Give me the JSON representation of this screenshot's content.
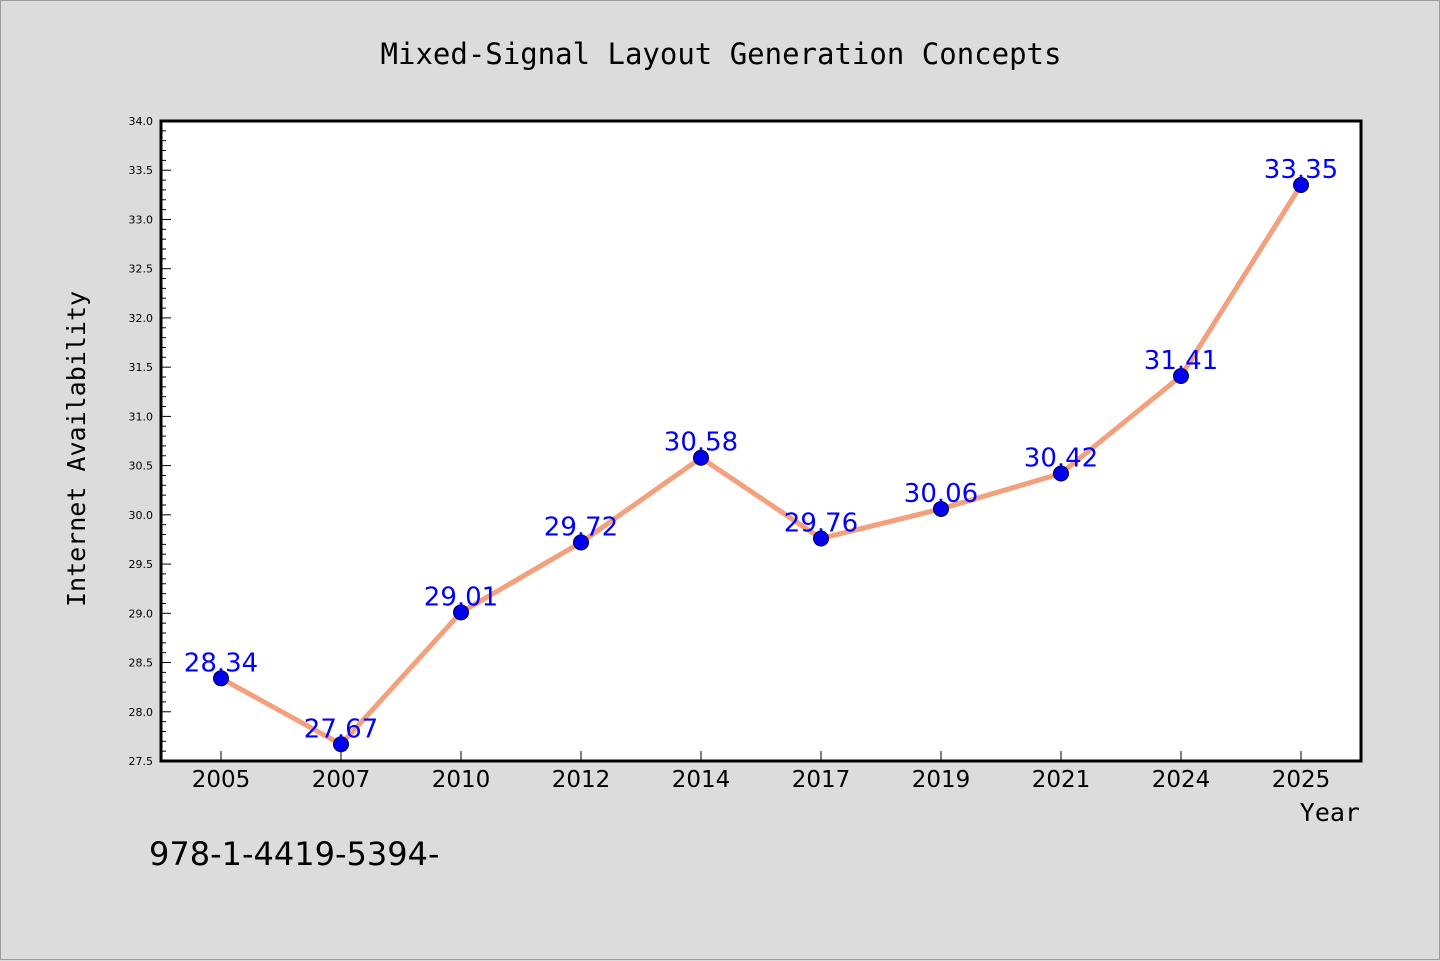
{
  "chart_data": {
    "type": "line",
    "title": "Mixed-Signal Layout Generation Concepts",
    "xlabel": "Year",
    "ylabel": "Internet Availability",
    "categories": [
      "2005",
      "2007",
      "2010",
      "2012",
      "2014",
      "2017",
      "2019",
      "2021",
      "2024",
      "2025"
    ],
    "values": [
      28.34,
      27.67,
      29.01,
      29.72,
      30.58,
      29.76,
      30.06,
      30.42,
      31.41,
      33.35
    ],
    "data_labels": [
      "28.34",
      "27.67",
      "29.01",
      "29.72",
      "30.58",
      "29.76",
      "30.06",
      "30.42",
      "31.41",
      "33.35"
    ],
    "ylim": [
      27.5,
      34.0
    ],
    "yticks": [
      "27.5",
      "28.0",
      "28.5",
      "29.0",
      "29.5",
      "30.0",
      "30.5",
      "31.0",
      "31.5",
      "32.0",
      "32.5",
      "33.0",
      "33.5",
      "34.0"
    ],
    "grid": false,
    "legend": "none",
    "colors": {
      "line": "#f4a07c",
      "marker": "#0000ee",
      "label": "#0000ff",
      "plot_bg": "#ffffff",
      "page_bg": "#dcdcdc"
    }
  },
  "footer": {
    "isbn": "978-1-4419-5394-"
  }
}
